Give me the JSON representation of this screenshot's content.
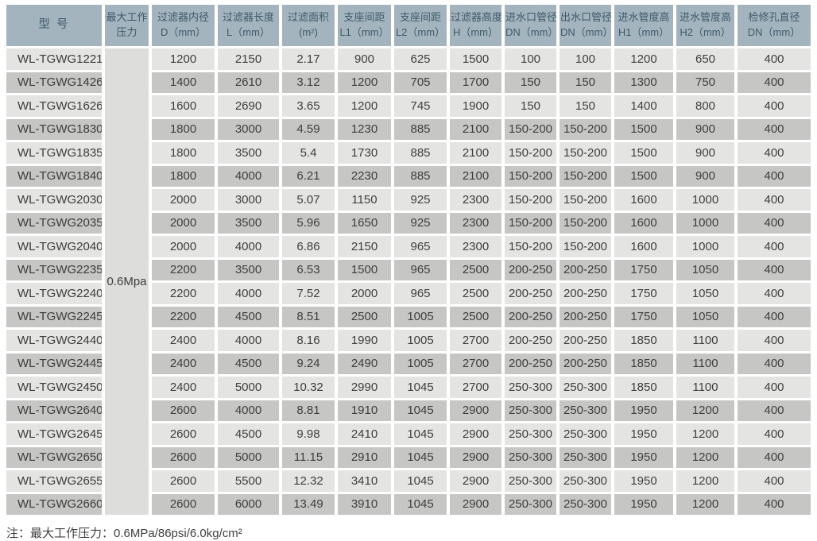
{
  "colors": {
    "header_bg": "#a4b4be",
    "header_text": "#3d5a6a",
    "row_light": "#e4e4e3",
    "row_dark": "#c6c6c5",
    "pressure_bg": "#dddddc"
  },
  "table": {
    "header": {
      "model": "型 号",
      "pressure_line1": "最大工作",
      "pressure_line2": "压力",
      "columns": [
        [
          "过滤器内径",
          "D（mm）"
        ],
        [
          "过滤器长度",
          "L（mm）"
        ],
        [
          "过滤面积",
          "(m²)"
        ],
        [
          "支座间距",
          "L1（mm）"
        ],
        [
          "支座间距",
          "L2（mm）"
        ],
        [
          "过滤器高度",
          "H（mm）"
        ],
        [
          "进水口管径",
          "DN（mm）"
        ],
        [
          "出水口管径",
          "DN（mm）"
        ],
        [
          "进水管度高",
          "H1（mm）"
        ],
        [
          "进水管度高",
          "H2（mm）"
        ],
        [
          "检修孔直径",
          "DN（mm）"
        ]
      ]
    },
    "pressure_value": "0.6Mpa",
    "rows": [
      {
        "model": "WL-TGWG1221",
        "values": [
          "1200",
          "2150",
          "2.17",
          "900",
          "625",
          "1500",
          "100",
          "100",
          "1200",
          "650",
          "400"
        ]
      },
      {
        "model": "WL-TGWG1426",
        "values": [
          "1400",
          "2610",
          "3.12",
          "1200",
          "705",
          "1700",
          "150",
          "150",
          "1300",
          "750",
          "400"
        ]
      },
      {
        "model": "WL-TGWG1626",
        "values": [
          "1600",
          "2690",
          "3.65",
          "1200",
          "745",
          "1900",
          "150",
          "150",
          "1400",
          "800",
          "400"
        ]
      },
      {
        "model": "WL-TGWG1830",
        "values": [
          "1800",
          "3000",
          "4.59",
          "1230",
          "885",
          "2100",
          "150-200",
          "150-200",
          "1500",
          "900",
          "400"
        ]
      },
      {
        "model": "WL-TGWG1835",
        "values": [
          "1800",
          "3500",
          "5.4",
          "1730",
          "885",
          "2100",
          "150-200",
          "150-200",
          "1500",
          "900",
          "400"
        ]
      },
      {
        "model": "WL-TGWG1840",
        "values": [
          "1800",
          "4000",
          "6.21",
          "2230",
          "885",
          "2100",
          "150-200",
          "150-200",
          "1500",
          "900",
          "400"
        ]
      },
      {
        "model": "WL-TGWG2030",
        "values": [
          "2000",
          "3000",
          "5.07",
          "1150",
          "925",
          "2300",
          "150-200",
          "150-200",
          "1600",
          "1000",
          "400"
        ]
      },
      {
        "model": "WL-TGWG2035",
        "values": [
          "2000",
          "3500",
          "5.96",
          "1650",
          "925",
          "2300",
          "150-200",
          "150-200",
          "1600",
          "1000",
          "400"
        ]
      },
      {
        "model": "WL-TGWG2040",
        "values": [
          "2000",
          "4000",
          "6.86",
          "2150",
          "965",
          "2300",
          "150-200",
          "150-200",
          "1600",
          "1000",
          "400"
        ]
      },
      {
        "model": "WL-TGWG2235",
        "values": [
          "2200",
          "3500",
          "6.53",
          "1500",
          "965",
          "2500",
          "200-250",
          "200-250",
          "1750",
          "1050",
          "400"
        ]
      },
      {
        "model": "WL-TGWG2240",
        "values": [
          "2200",
          "4000",
          "7.52",
          "2000",
          "965",
          "2500",
          "200-250",
          "200-250",
          "1750",
          "1050",
          "400"
        ]
      },
      {
        "model": "WL-TGWG2245",
        "values": [
          "2200",
          "4500",
          "8.51",
          "2500",
          "1005",
          "2500",
          "200-250",
          "200-250",
          "1750",
          "1050",
          "400"
        ]
      },
      {
        "model": "WL-TGWG2440",
        "values": [
          "2400",
          "4000",
          "8.16",
          "1990",
          "1005",
          "2700",
          "200-250",
          "200-250",
          "1850",
          "1100",
          "400"
        ]
      },
      {
        "model": "WL-TGWG2445",
        "values": [
          "2400",
          "4500",
          "9.24",
          "2490",
          "1005",
          "2700",
          "200-250",
          "200-250",
          "1850",
          "1100",
          "400"
        ]
      },
      {
        "model": "WL-TGWG2450",
        "values": [
          "2400",
          "5000",
          "10.32",
          "2990",
          "1045",
          "2700",
          "250-300",
          "250-300",
          "1850",
          "1100",
          "400"
        ]
      },
      {
        "model": "WL-TGWG2640",
        "values": [
          "2600",
          "4000",
          "8.81",
          "1910",
          "1045",
          "2900",
          "250-300",
          "250-300",
          "1950",
          "1200",
          "400"
        ]
      },
      {
        "model": "WL-TGWG2645",
        "values": [
          "2600",
          "4500",
          "9.98",
          "2410",
          "1045",
          "2900",
          "250-300",
          "250-300",
          "1950",
          "1200",
          "400"
        ]
      },
      {
        "model": "WL-TGWG2650",
        "values": [
          "2600",
          "5000",
          "11.15",
          "2910",
          "1045",
          "2900",
          "250-300",
          "250-300",
          "1950",
          "1200",
          "400"
        ]
      },
      {
        "model": "WL-TGWG2655",
        "values": [
          "2600",
          "5500",
          "12.32",
          "3410",
          "1045",
          "2900",
          "250-300",
          "250-300",
          "1950",
          "1200",
          "400"
        ]
      },
      {
        "model": "WL-TGWG2660",
        "values": [
          "2600",
          "6000",
          "13.49",
          "3910",
          "1045",
          "2900",
          "250-300",
          "250-300",
          "1950",
          "1200",
          "400"
        ]
      }
    ]
  },
  "note": "注：最大工作压力：0.6MPa/86psi/6.0kg/cm²"
}
